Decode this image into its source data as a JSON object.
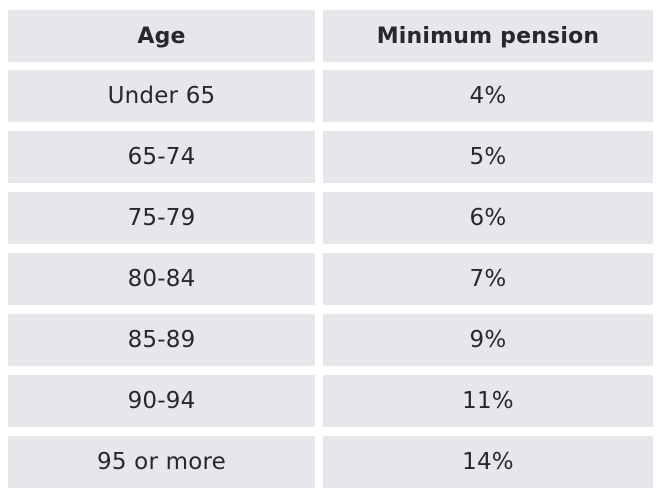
{
  "table": {
    "headers": [
      "Age",
      "Minimum pension"
    ],
    "rows": [
      {
        "age": "Under 65",
        "pension": "4%"
      },
      {
        "age": "65-74",
        "pension": "5%"
      },
      {
        "age": "75-79",
        "pension": "6%"
      },
      {
        "age": "80-84",
        "pension": "7%"
      },
      {
        "age": "85-89",
        "pension": "9%"
      },
      {
        "age": "90-94",
        "pension": "11%"
      },
      {
        "age": "95 or more",
        "pension": "14%"
      }
    ]
  }
}
